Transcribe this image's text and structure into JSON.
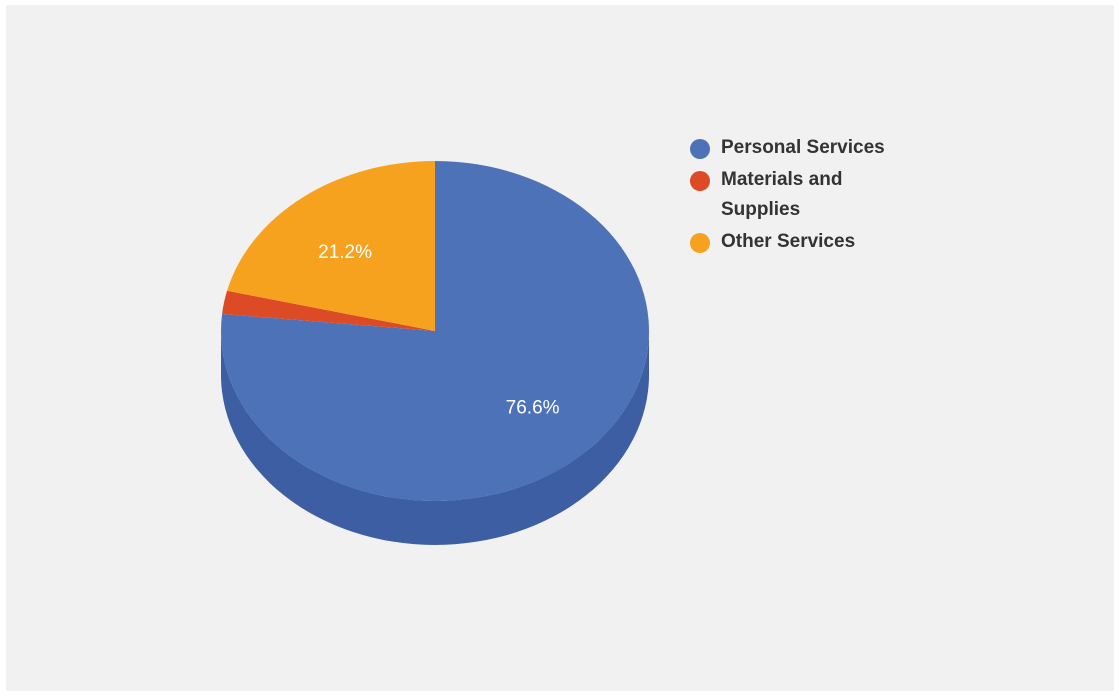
{
  "chart_data": {
    "type": "pie",
    "style": "3d",
    "start": "top",
    "direction": "clockwise",
    "legend_position": "right",
    "slices": [
      {
        "label": "Personal Services",
        "value": 76.6,
        "display": "76.6%",
        "color": "#4e72b8",
        "side_color": "#3d5ea3"
      },
      {
        "label": "Materials and Supplies",
        "value": 2.2,
        "display": "",
        "color": "#dc4a26",
        "side_color": "#b83b1d"
      },
      {
        "label": "Other Services",
        "value": 21.2,
        "display": "21.2%",
        "color": "#f7a21f",
        "side_color": "#d88a12"
      }
    ]
  }
}
